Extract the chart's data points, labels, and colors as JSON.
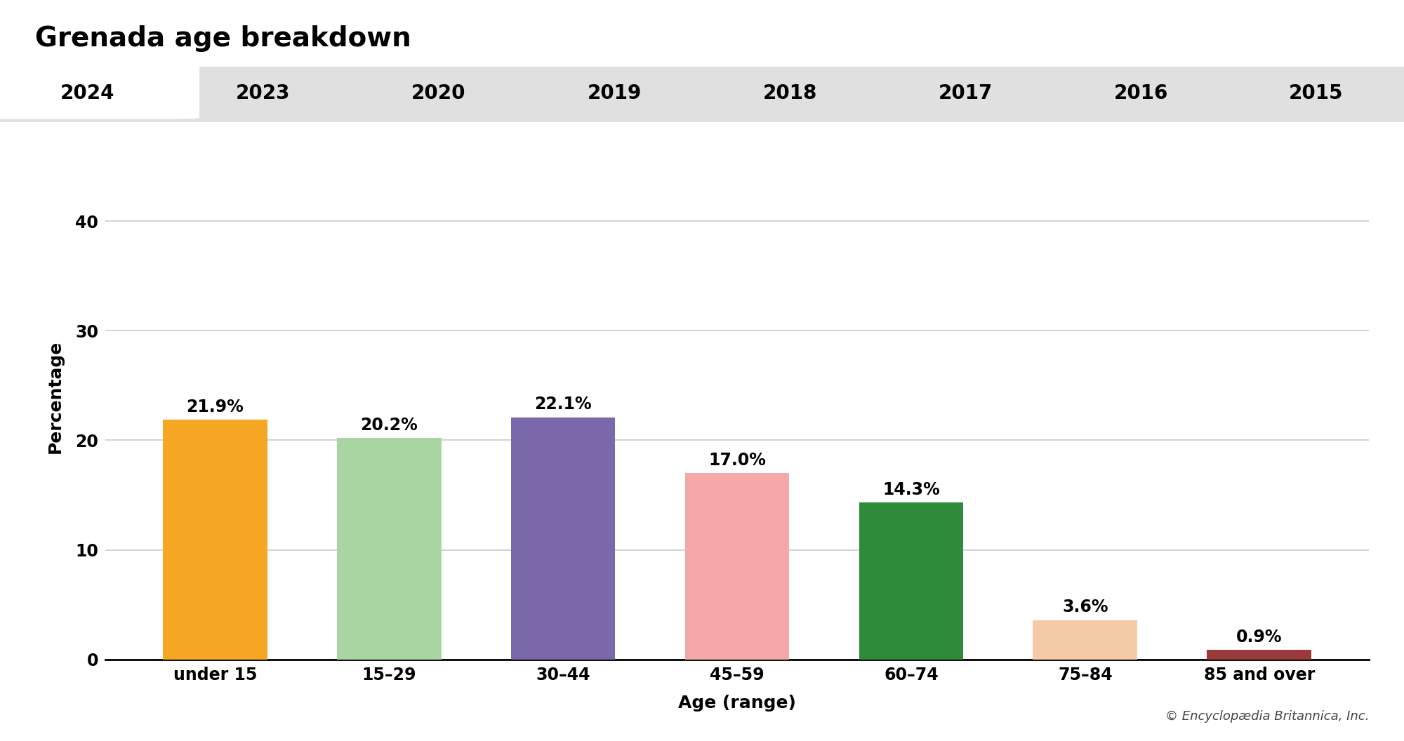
{
  "title": "Grenada age breakdown",
  "categories": [
    "under 15",
    "15–29",
    "30–44",
    "45–59",
    "60–74",
    "75–84",
    "85 and over"
  ],
  "values": [
    21.9,
    20.2,
    22.1,
    17.0,
    14.3,
    3.6,
    0.9
  ],
  "bar_colors": [
    "#F5A623",
    "#A8D5A2",
    "#7B68AA",
    "#F4A9A8",
    "#2E8B3A",
    "#F5CBA7",
    "#9B3A3A"
  ],
  "labels": [
    "21.9%",
    "20.2%",
    "22.1%",
    "17.0%",
    "14.3%",
    "3.6%",
    "0.9%"
  ],
  "xlabel": "Age (range)",
  "ylabel": "Percentage",
  "ylim": [
    0,
    48
  ],
  "yticks": [
    0,
    10,
    20,
    30,
    40
  ],
  "tab_years": [
    "2024",
    "2023",
    "2020",
    "2019",
    "2018",
    "2017",
    "2016",
    "2015"
  ],
  "tab_selected": 0,
  "copyright": "© Encyclopædia Britannica, Inc.",
  "background_color": "#ffffff",
  "tab_bg_color": "#e0e0e0",
  "tab_selected_color": "#ffffff",
  "grid_color": "#cccccc",
  "title_fontsize": 28,
  "axis_label_fontsize": 18,
  "tick_fontsize": 17,
  "bar_label_fontsize": 17,
  "tab_fontsize": 20,
  "copyright_fontsize": 13
}
